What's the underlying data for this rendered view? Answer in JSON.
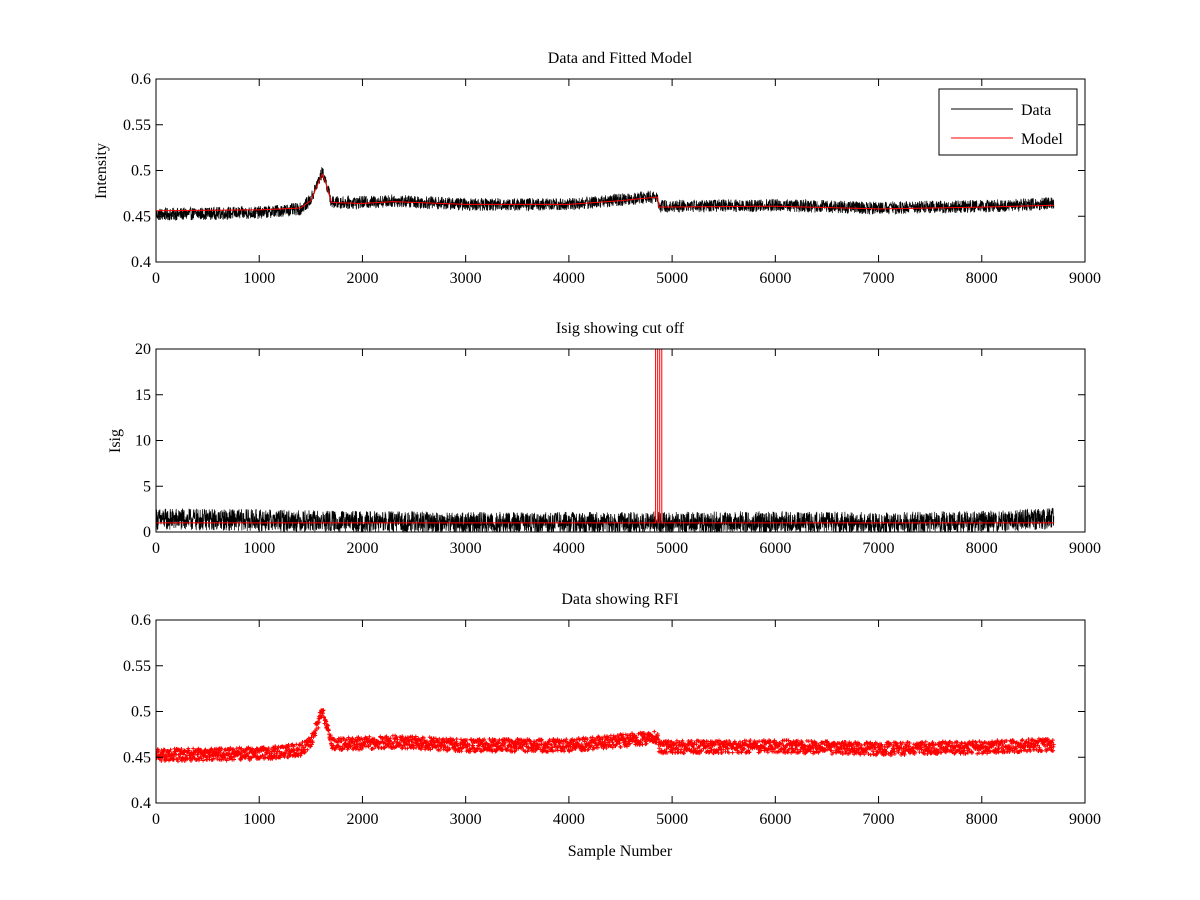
{
  "colors": {
    "data": "#000000",
    "model": "#ff0000",
    "rfi": "#ff0000",
    "frame": "#000000",
    "background": "#ffffff"
  },
  "chart_data": [
    {
      "type": "line",
      "title": "Data and Fitted Model",
      "xlabel": "",
      "ylabel": "Intensity",
      "xlim": [
        0,
        9000
      ],
      "ylim": [
        0.4,
        0.6
      ],
      "xticks": [
        0,
        1000,
        2000,
        3000,
        4000,
        5000,
        6000,
        7000,
        8000,
        9000
      ],
      "yticks": [
        0.4,
        0.45,
        0.5,
        0.55,
        0.6
      ],
      "xtick_labels": [
        "0",
        "1000",
        "2000",
        "3000",
        "4000",
        "5000",
        "6000",
        "7000",
        "8000",
        "9000"
      ],
      "ytick_labels": [
        "0.4",
        "0.45",
        "0.5",
        "0.55",
        "0.6"
      ],
      "grid": false,
      "legend": {
        "position": "top-right",
        "entries": [
          "Data",
          "Model"
        ]
      },
      "series": [
        {
          "name": "Data",
          "color": "#000000",
          "style": "noisy-line",
          "n_samples": 8700,
          "baseline": {
            "x": [
              0,
              1000,
              1400,
              1500,
              1560,
              1610,
              1640,
              1700,
              2000,
              2300,
              3000,
              4000,
              4500,
              4860,
              4870,
              6000,
              7000,
              8000,
              8700
            ],
            "y": [
              0.452,
              0.454,
              0.458,
              0.468,
              0.485,
              0.498,
              0.49,
              0.465,
              0.465,
              0.467,
              0.463,
              0.463,
              0.468,
              0.472,
              0.461,
              0.462,
              0.459,
              0.461,
              0.464
            ]
          },
          "noise_amplitude": 0.007
        },
        {
          "name": "Model",
          "color": "#ff0000",
          "style": "line",
          "x": [
            0,
            1000,
            1400,
            1500,
            1560,
            1610,
            1640,
            1700,
            2000,
            2300,
            3000,
            4000,
            4500,
            4860,
            4870,
            6000,
            7000,
            8000,
            8700
          ],
          "y": [
            0.456,
            0.457,
            0.459,
            0.467,
            0.483,
            0.496,
            0.488,
            0.465,
            0.464,
            0.466,
            0.463,
            0.463,
            0.467,
            0.471,
            0.46,
            0.461,
            0.458,
            0.46,
            0.462
          ]
        }
      ]
    },
    {
      "type": "line",
      "title": "Isig showing cut off",
      "xlabel": "",
      "ylabel": "Isig",
      "xlim": [
        0,
        9000
      ],
      "ylim": [
        0,
        20
      ],
      "xticks": [
        0,
        1000,
        2000,
        3000,
        4000,
        5000,
        6000,
        7000,
        8000,
        9000
      ],
      "yticks": [
        0,
        5,
        10,
        15,
        20
      ],
      "xtick_labels": [
        "0",
        "1000",
        "2000",
        "3000",
        "4000",
        "5000",
        "6000",
        "7000",
        "8000",
        "9000"
      ],
      "ytick_labels": [
        "0",
        "5",
        "10",
        "15",
        "20"
      ],
      "grid": false,
      "series": [
        {
          "color": "#000000",
          "style": "noisy-line",
          "n_samples": 8700,
          "baseline": {
            "x": [
              0,
              1000,
              2000,
              3000,
              4000,
              5000,
              6000,
              7000,
              8000,
              8700
            ],
            "y": [
              1.4,
              1.3,
              1.1,
              1.0,
              1.0,
              1.0,
              1.1,
              1.0,
              1.1,
              1.5
            ]
          },
          "noise_amplitude": 1.2
        },
        {
          "color": "#ff0000",
          "style": "line",
          "x": [
            0,
            4840,
            4840,
            4860,
            4860,
            4880,
            4880,
            4900,
            4900,
            8700
          ],
          "y": [
            1.0,
            1.0,
            20.5,
            20.5,
            1.0,
            1.0,
            20.5,
            20.5,
            1.0,
            1.0
          ]
        }
      ]
    },
    {
      "type": "scatter",
      "title": "Data showing RFI",
      "xlabel": "Sample Number",
      "ylabel": "",
      "xlim": [
        0,
        9000
      ],
      "ylim": [
        0.4,
        0.6
      ],
      "xticks": [
        0,
        1000,
        2000,
        3000,
        4000,
        5000,
        6000,
        7000,
        8000,
        9000
      ],
      "yticks": [
        0.4,
        0.45,
        0.5,
        0.55,
        0.6
      ],
      "xtick_labels": [
        "0",
        "1000",
        "2000",
        "3000",
        "4000",
        "5000",
        "6000",
        "7000",
        "8000",
        "9000"
      ],
      "ytick_labels": [
        "0.4",
        "0.45",
        "0.5",
        "0.55",
        "0.6"
      ],
      "grid": false,
      "series": [
        {
          "color": "#ff0000",
          "marker": "plus",
          "n_samples": 8700,
          "baseline": {
            "x": [
              0,
              1000,
              1400,
              1500,
              1560,
              1610,
              1640,
              1700,
              2000,
              2300,
              3000,
              4000,
              4500,
              4860,
              4870,
              6000,
              7000,
              8000,
              8700
            ],
            "y": [
              0.452,
              0.454,
              0.458,
              0.468,
              0.485,
              0.498,
              0.49,
              0.465,
              0.465,
              0.467,
              0.463,
              0.463,
              0.468,
              0.472,
              0.461,
              0.462,
              0.459,
              0.461,
              0.464
            ]
          },
          "noise_amplitude": 0.007
        }
      ]
    }
  ]
}
